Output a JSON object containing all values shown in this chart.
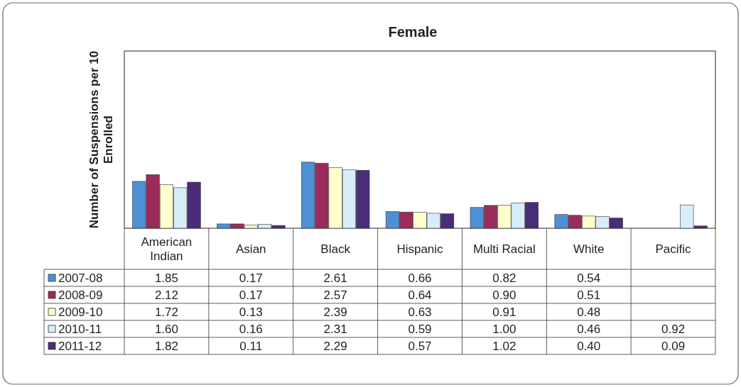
{
  "chart_data": {
    "type": "bar",
    "title": "Female",
    "ylabel": "Number of Suspensions per 10 Enrolled",
    "categories": [
      "American Indian",
      "Asian",
      "Black",
      "Hispanic",
      "Multi Racial",
      "White",
      "Pacific"
    ],
    "ylim": [
      0,
      7
    ],
    "legend": "bottom",
    "series": [
      {
        "name": "2007-08",
        "color": "#4f8fd6",
        "values": [
          1.85,
          0.17,
          2.61,
          0.66,
          0.82,
          0.54,
          null
        ],
        "value_labels": [
          "1.85",
          "0.17",
          "2.61",
          "0.66",
          "0.82",
          "0.54",
          null
        ]
      },
      {
        "name": "2008-09",
        "color": "#9a2c5c",
        "values": [
          2.12,
          0.17,
          2.57,
          0.64,
          0.9,
          0.51,
          null
        ],
        "value_labels": [
          "2.12",
          "0.17",
          "2.57",
          "0.64",
          "0.90",
          "0.51",
          null
        ]
      },
      {
        "name": "2009-10",
        "color": "#ffffcc",
        "values": [
          1.72,
          0.13,
          2.39,
          0.63,
          0.91,
          0.48,
          null
        ],
        "value_labels": [
          "1.72",
          "0.13",
          "2.39",
          "0.63",
          "0.91",
          "0.48",
          null
        ]
      },
      {
        "name": "2010-11",
        "color": "#d6eefa",
        "values": [
          1.6,
          0.16,
          2.31,
          0.59,
          1.0,
          0.46,
          0.92
        ],
        "value_labels": [
          "1.60",
          "0.16",
          "2.31",
          "0.59",
          "1.00",
          "0.46",
          "0.92"
        ]
      },
      {
        "name": "2011-12",
        "color": "#4a2c78",
        "values": [
          1.82,
          0.11,
          2.29,
          0.57,
          1.02,
          0.4,
          0.09
        ],
        "value_labels": [
          "1.82",
          "0.11",
          "2.29",
          "0.57",
          "1.02",
          "0.40",
          "0.09"
        ]
      }
    ]
  }
}
